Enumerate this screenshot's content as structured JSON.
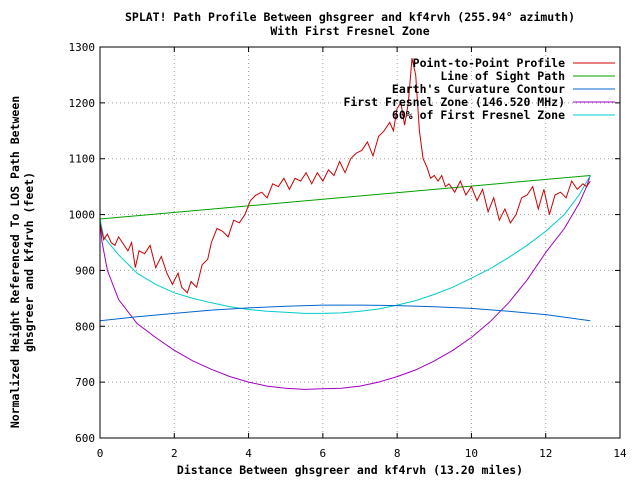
{
  "chart_data": {
    "type": "line",
    "title": "SPLAT! Path Profile Between ghsgreer and kf4rvh (255.94° azimuth)",
    "subtitle": "With First Fresnel Zone",
    "xlabel": "Distance Between ghsgreer and kf4rvh (13.20 miles)",
    "ylabel_lines": [
      "Normalized Height Referenced To LOS Path Between",
      "ghsgreer and kf4rvh (feet)"
    ],
    "xlim": [
      0,
      14
    ],
    "ylim": [
      600,
      1300
    ],
    "x_ticks": [
      0,
      2,
      4,
      6,
      8,
      10,
      12,
      14
    ],
    "y_ticks": [
      600,
      700,
      800,
      900,
      1000,
      1100,
      1200,
      1300
    ],
    "grid": true,
    "legend_position": "top-right",
    "colors": {
      "profile": "#cc0000",
      "los": "#00a000",
      "curvature": "#0066cc",
      "fresnel": "#a000c0",
      "fresnel60": "#00cccc"
    },
    "series": [
      {
        "name": "Point-to-Point Profile",
        "color_key": "profile",
        "x": [
          0,
          0.1,
          0.2,
          0.3,
          0.4,
          0.5,
          0.6,
          0.75,
          0.85,
          0.95,
          1.05,
          1.2,
          1.35,
          1.5,
          1.65,
          1.8,
          1.95,
          2.1,
          2.2,
          2.35,
          2.45,
          2.6,
          2.75,
          2.9,
          3.0,
          3.15,
          3.3,
          3.45,
          3.6,
          3.75,
          3.9,
          4.05,
          4.2,
          4.35,
          4.5,
          4.65,
          4.8,
          4.95,
          5.1,
          5.25,
          5.4,
          5.55,
          5.7,
          5.85,
          6.0,
          6.15,
          6.3,
          6.45,
          6.6,
          6.75,
          6.9,
          7.05,
          7.2,
          7.35,
          7.5,
          7.65,
          7.8,
          7.9,
          8.0,
          8.1,
          8.2,
          8.3,
          8.4,
          8.5,
          8.6,
          8.7,
          8.8,
          8.9,
          9.0,
          9.1,
          9.2,
          9.3,
          9.4,
          9.55,
          9.7,
          9.85,
          10.0,
          10.15,
          10.3,
          10.45,
          10.6,
          10.75,
          10.9,
          11.05,
          11.2,
          11.35,
          11.5,
          11.65,
          11.8,
          11.95,
          12.1,
          12.25,
          12.4,
          12.55,
          12.7,
          12.85,
          13.0,
          13.1,
          13.2
        ],
        "y": [
          985,
          955,
          965,
          950,
          945,
          960,
          950,
          935,
          950,
          905,
          935,
          930,
          945,
          905,
          925,
          895,
          875,
          895,
          870,
          860,
          880,
          870,
          910,
          920,
          950,
          975,
          970,
          960,
          990,
          985,
          1000,
          1025,
          1035,
          1040,
          1030,
          1055,
          1050,
          1065,
          1045,
          1065,
          1060,
          1075,
          1055,
          1075,
          1060,
          1080,
          1070,
          1095,
          1075,
          1100,
          1110,
          1115,
          1130,
          1105,
          1140,
          1150,
          1165,
          1150,
          1190,
          1200,
          1160,
          1200,
          1280,
          1250,
          1150,
          1100,
          1085,
          1065,
          1070,
          1060,
          1070,
          1050,
          1055,
          1040,
          1060,
          1035,
          1050,
          1025,
          1045,
          1005,
          1030,
          990,
          1010,
          985,
          1000,
          1030,
          1035,
          1050,
          1010,
          1045,
          1000,
          1035,
          1040,
          1030,
          1060,
          1045,
          1055,
          1050,
          1060
        ]
      },
      {
        "name": "Line of Sight Path",
        "color_key": "los",
        "x": [
          0,
          13.2
        ],
        "y": [
          992,
          1070
        ]
      },
      {
        "name": "Earth's Curvature Contour",
        "color_key": "curvature",
        "x": [
          0,
          1,
          2,
          3,
          4,
          5,
          6,
          7,
          8,
          9,
          10,
          11,
          12,
          13.2
        ],
        "y": [
          810,
          817,
          823,
          829,
          833,
          836,
          838,
          838,
          837,
          835,
          832,
          827,
          821,
          810
        ]
      },
      {
        "name": "First Fresnel Zone (146.520 MHz)",
        "color_key": "fresnel",
        "x": [
          0,
          0.05,
          0.2,
          0.5,
          1,
          1.5,
          2,
          2.5,
          3,
          3.5,
          4,
          4.5,
          5,
          5.5,
          6,
          6.5,
          7,
          7.5,
          8,
          8.5,
          9,
          9.5,
          10,
          10.5,
          11,
          11.5,
          12,
          12.5,
          12.9,
          13.1,
          13.2
        ],
        "y": [
          992,
          952,
          900,
          848,
          805,
          780,
          757,
          738,
          723,
          710,
          700,
          693,
          689,
          687,
          688,
          689,
          693,
          700,
          710,
          722,
          738,
          757,
          780,
          808,
          842,
          883,
          932,
          975,
          1020,
          1050,
          1070
        ]
      },
      {
        "name": "60% of First Fresnel Zone",
        "color_key": "fresnel60",
        "x": [
          0,
          0.1,
          0.5,
          1,
          1.5,
          2,
          2.5,
          3,
          3.5,
          4,
          4.5,
          5,
          5.5,
          6,
          6.5,
          7,
          7.5,
          8,
          8.5,
          9,
          9.5,
          10,
          10.5,
          11,
          11.5,
          12,
          12.5,
          12.9,
          13.2
        ],
        "y": [
          992,
          960,
          928,
          895,
          875,
          860,
          850,
          842,
          835,
          830,
          827,
          825,
          823,
          823,
          824,
          827,
          831,
          838,
          846,
          857,
          870,
          886,
          903,
          923,
          945,
          970,
          1000,
          1035,
          1070
        ]
      }
    ]
  }
}
